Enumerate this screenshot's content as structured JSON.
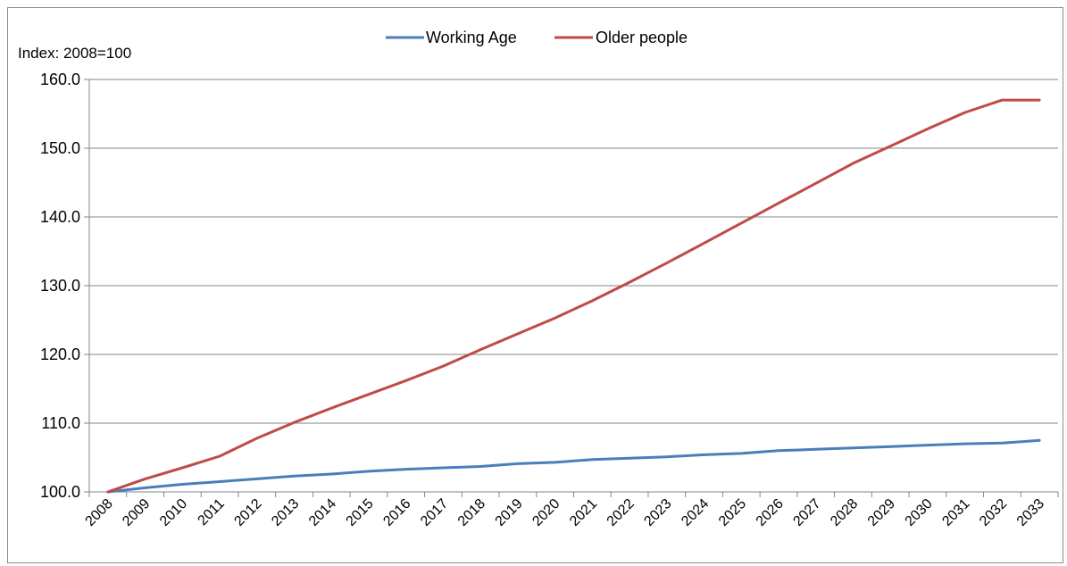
{
  "chart_data": {
    "type": "line",
    "unit_label": "Index: 2008=100",
    "x": [
      "2008",
      "2009",
      "2010",
      "2011",
      "2012",
      "2013",
      "2014",
      "2015",
      "2016",
      "2017",
      "2018",
      "2019",
      "2020",
      "2021",
      "2022",
      "2023",
      "2024",
      "2025",
      "2026",
      "2027",
      "2028",
      "2029",
      "2030",
      "2031",
      "2032",
      "2033"
    ],
    "series": [
      {
        "name": "Working Age",
        "color": "#4a7ebb",
        "values": [
          100.0,
          100.6,
          101.1,
          101.5,
          101.9,
          102.3,
          102.6,
          103.0,
          103.3,
          103.5,
          103.7,
          104.1,
          104.3,
          104.7,
          104.9,
          105.1,
          105.4,
          105.6,
          106.0,
          106.2,
          106.4,
          106.6,
          106.8,
          107.0,
          107.1,
          107.5
        ]
      },
      {
        "name": "Older people",
        "color": "#be4b48",
        "values": [
          100.0,
          101.9,
          103.5,
          105.2,
          107.8,
          110.1,
          112.2,
          114.2,
          116.2,
          118.3,
          120.7,
          123.0,
          125.3,
          127.8,
          130.5,
          133.3,
          136.2,
          139.1,
          142.0,
          144.9,
          147.8,
          150.3,
          152.8,
          155.2,
          157.0,
          157.0
        ]
      }
    ],
    "ylim": [
      100,
      160
    ],
    "yticks": [
      "100.0",
      "110.0",
      "120.0",
      "130.0",
      "140.0",
      "150.0",
      "160.0"
    ],
    "grid": true,
    "legend_position": "top-center"
  }
}
